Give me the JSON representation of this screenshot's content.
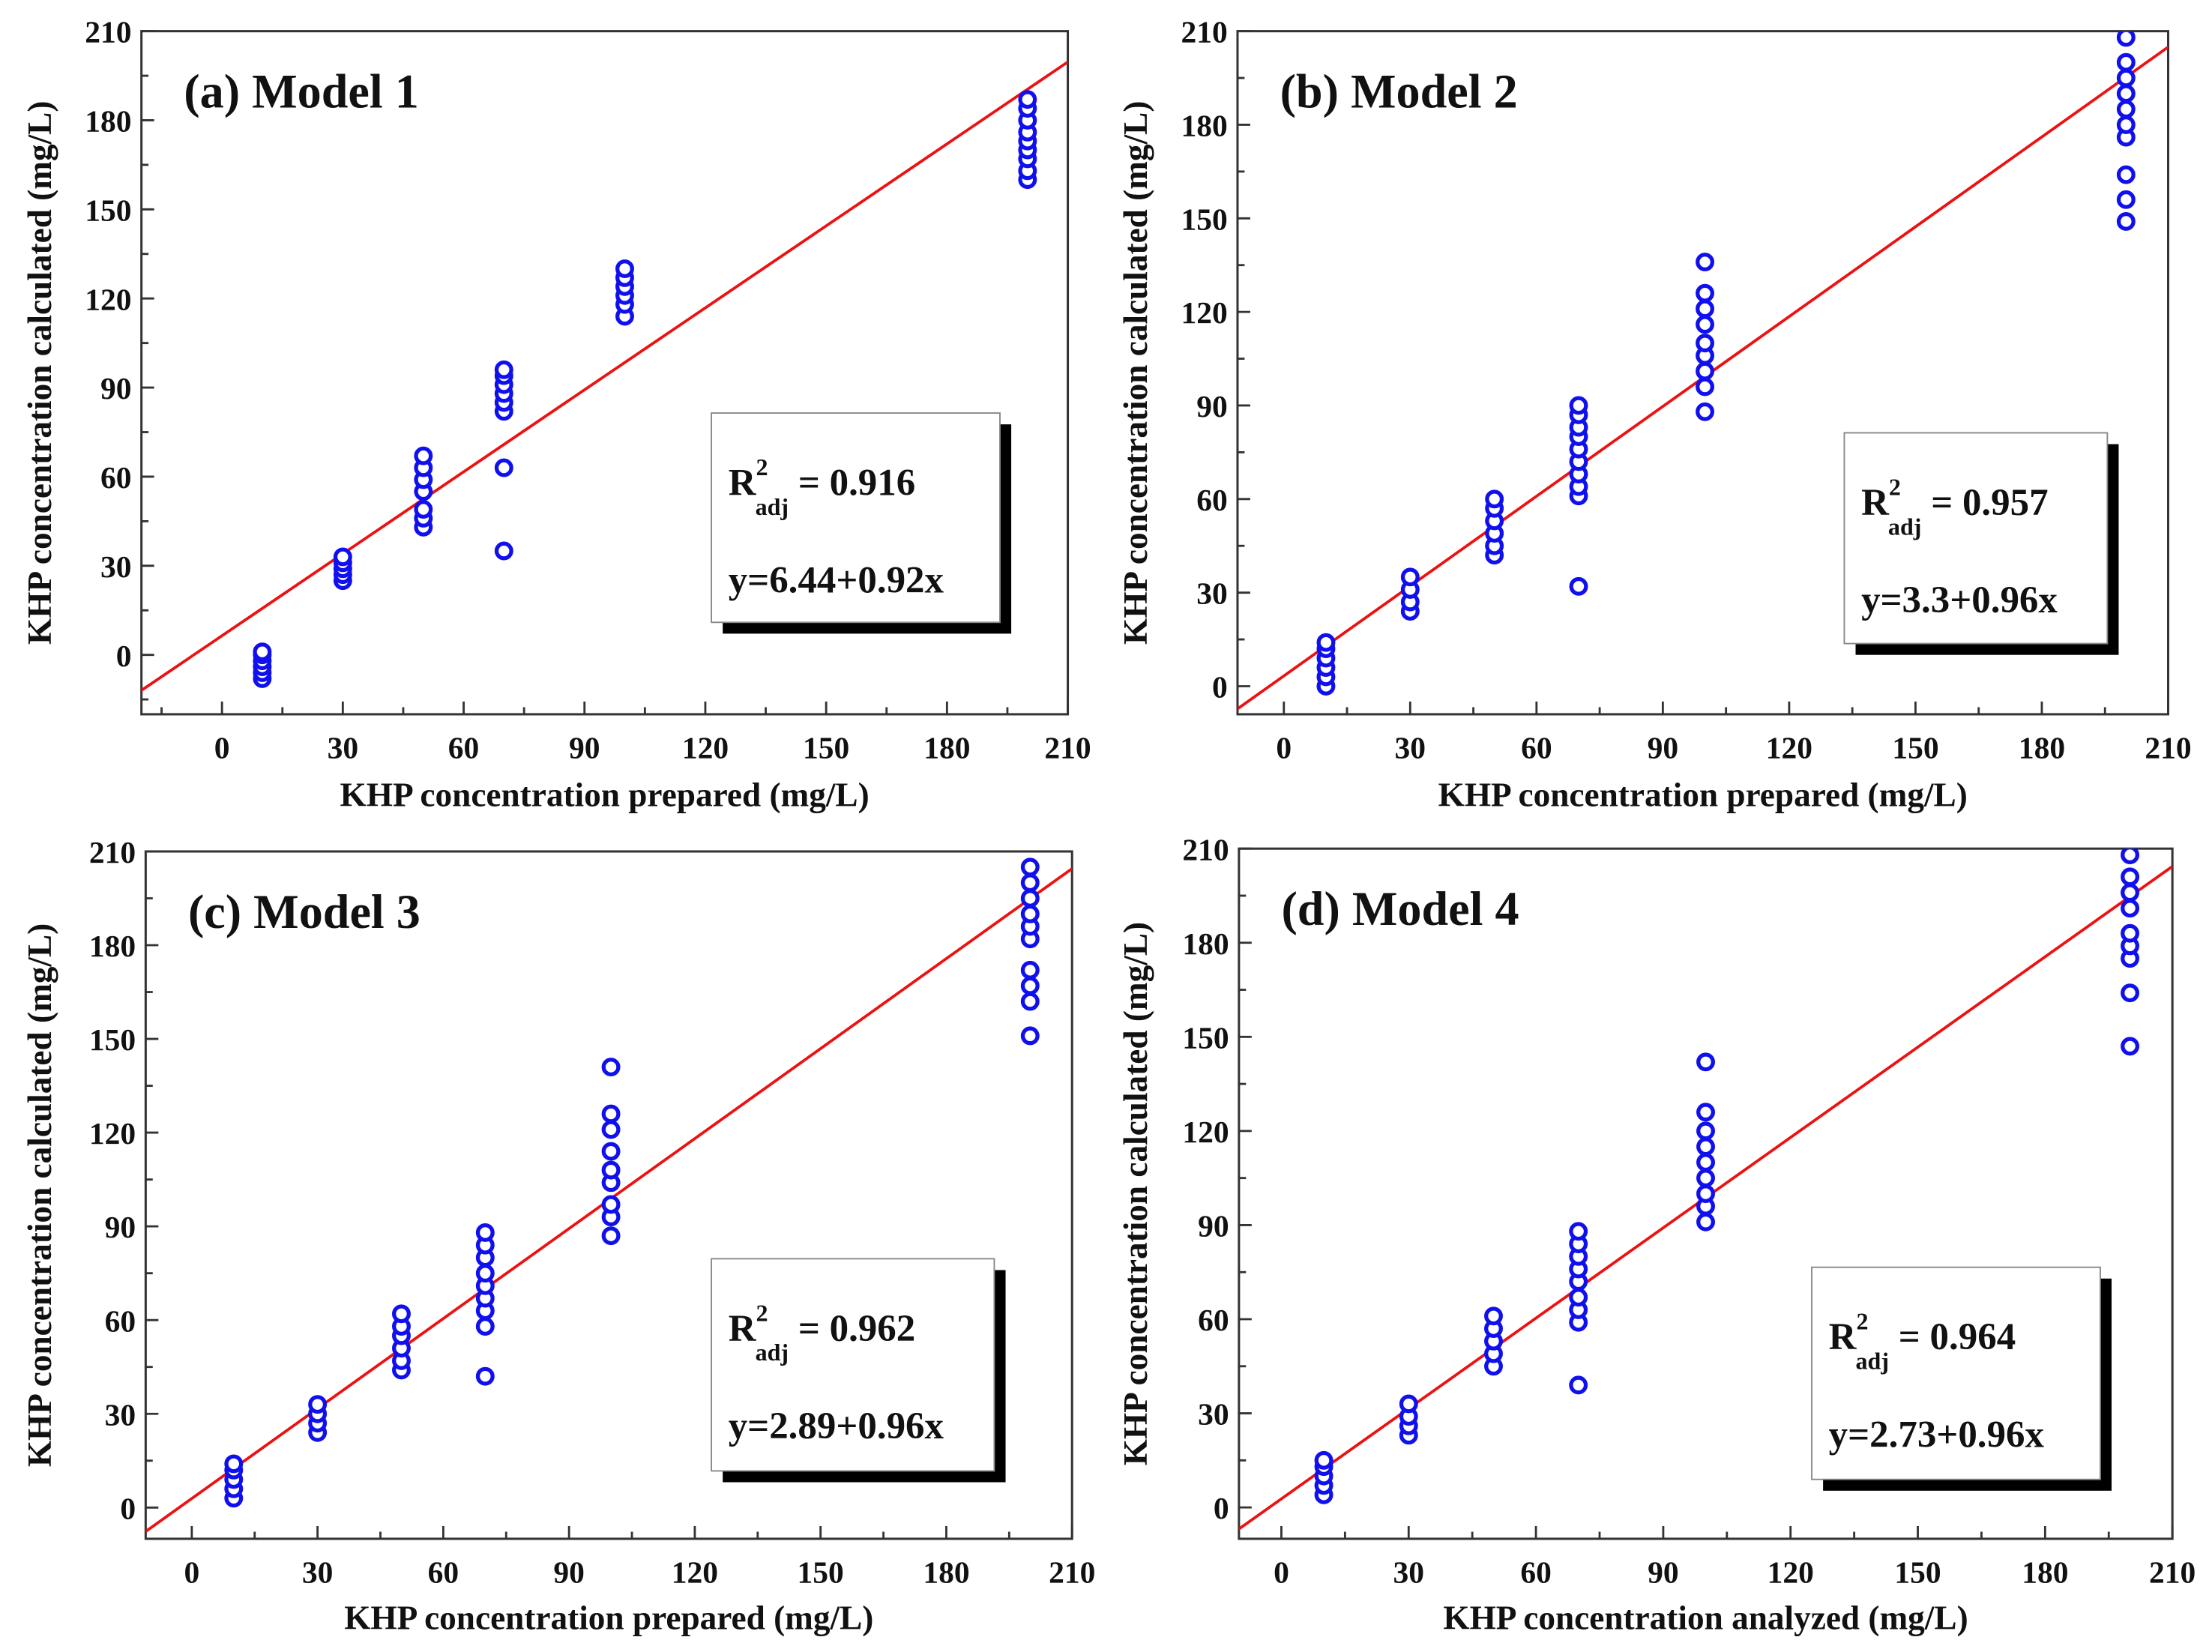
{
  "colors": {
    "marker": "#1010ee",
    "fit_line": "#ee1111",
    "axis": "#333333"
  },
  "chart_data": [
    {
      "type": "scatter",
      "title": "(a) Model 1",
      "xlabel": "KHP concentration prepared (mg/L)",
      "ylabel": "KHP concentration calculated (mg/L)",
      "xlim": [
        -20,
        210
      ],
      "ylim": [
        -20,
        210
      ],
      "xticks": [
        0,
        30,
        60,
        90,
        120,
        150,
        180,
        210
      ],
      "yticks": [
        0,
        30,
        60,
        90,
        120,
        150,
        180,
        210
      ],
      "r2_label": "R",
      "r2_sup": "2",
      "r2_sub": "adj",
      "r2_value": "= 0.916",
      "equation": "y=6.44+0.92x",
      "fit": {
        "intercept": 6.44,
        "slope": 0.92
      },
      "points": [
        {
          "x": 10,
          "y": [
            -8,
            -6,
            -4,
            -2,
            0,
            1
          ]
        },
        {
          "x": 30,
          "y": [
            25,
            27,
            29,
            31,
            33
          ]
        },
        {
          "x": 50,
          "y": [
            43,
            46,
            49,
            55,
            59,
            63,
            67
          ]
        },
        {
          "x": 70,
          "y": [
            35,
            63,
            82,
            85,
            88,
            91,
            94,
            96
          ]
        },
        {
          "x": 100,
          "y": [
            114,
            118,
            121,
            124,
            127,
            130
          ]
        },
        {
          "x": 200,
          "y": [
            160,
            163,
            167,
            170,
            173,
            176,
            180,
            184,
            187
          ]
        }
      ]
    },
    {
      "type": "scatter",
      "title": "(b) Model 2",
      "xlabel": "KHP concentration prepared (mg/L)",
      "ylabel": "KHP concentration calculated (mg/L)",
      "xlim": [
        -11,
        210
      ],
      "ylim": [
        -9,
        210
      ],
      "xticks": [
        0,
        30,
        60,
        90,
        120,
        150,
        180,
        210
      ],
      "yticks": [
        0,
        30,
        60,
        90,
        120,
        150,
        180,
        210
      ],
      "r2_label": "R",
      "r2_sup": "2",
      "r2_sub": "adj",
      "r2_value": "= 0.957",
      "equation": "y=3.3+0.96x",
      "fit": {
        "intercept": 3.3,
        "slope": 0.96
      },
      "points": [
        {
          "x": 10,
          "y": [
            0,
            3,
            6,
            9,
            12,
            14
          ]
        },
        {
          "x": 30,
          "y": [
            24,
            27,
            31,
            35
          ]
        },
        {
          "x": 50,
          "y": [
            42,
            45,
            49,
            53,
            57,
            60
          ]
        },
        {
          "x": 70,
          "y": [
            32,
            61,
            64,
            68,
            72,
            76,
            80,
            83,
            87,
            90
          ]
        },
        {
          "x": 100,
          "y": [
            88,
            96,
            101,
            106,
            110,
            116,
            121,
            126,
            136
          ]
        },
        {
          "x": 200,
          "y": [
            149,
            156,
            164,
            176,
            180,
            185,
            190,
            195,
            200,
            208
          ]
        }
      ]
    },
    {
      "type": "scatter",
      "title": "(c) Model 3",
      "xlabel": "KHP concentration prepared (mg/L)",
      "ylabel": "KHP concentration calculated (mg/L)",
      "xlim": [
        -11,
        210
      ],
      "ylim": [
        -10,
        210
      ],
      "xticks": [
        0,
        30,
        60,
        90,
        120,
        150,
        180,
        210
      ],
      "yticks": [
        0,
        30,
        60,
        90,
        120,
        150,
        180,
        210
      ],
      "r2_label": "R",
      "r2_sup": "2",
      "r2_sub": "adj",
      "r2_value": "= 0.962",
      "equation": "y=2.89+0.96x",
      "fit": {
        "intercept": 2.89,
        "slope": 0.96
      },
      "points": [
        {
          "x": 10,
          "y": [
            3,
            6,
            9,
            12,
            14
          ]
        },
        {
          "x": 30,
          "y": [
            24,
            27,
            30,
            33
          ]
        },
        {
          "x": 50,
          "y": [
            44,
            47,
            51,
            55,
            58,
            62
          ]
        },
        {
          "x": 70,
          "y": [
            42,
            58,
            63,
            67,
            71,
            75,
            80,
            84,
            88
          ]
        },
        {
          "x": 100,
          "y": [
            87,
            93,
            97,
            104,
            108,
            114,
            121,
            126,
            141
          ]
        },
        {
          "x": 200,
          "y": [
            151,
            162,
            167,
            172,
            182,
            186,
            190,
            195,
            200,
            205
          ]
        }
      ]
    },
    {
      "type": "scatter",
      "title": "(d) Model 4",
      "xlabel": "KHP concentration analyzed (mg/L)",
      "ylabel": "KHP concentration calculated (mg/L)",
      "xlim": [
        -10,
        210
      ],
      "ylim": [
        -10,
        210
      ],
      "xticks": [
        0,
        30,
        60,
        90,
        120,
        150,
        180,
        210
      ],
      "yticks": [
        0,
        30,
        60,
        90,
        120,
        150,
        180,
        210
      ],
      "r2_label": "R",
      "r2_sup": "2",
      "r2_sub": "adj",
      "r2_value": "= 0.964",
      "equation": "y=2.73+0.96x",
      "fit": {
        "intercept": 2.73,
        "slope": 0.96
      },
      "points": [
        {
          "x": 10,
          "y": [
            4,
            7,
            10,
            13,
            15
          ]
        },
        {
          "x": 30,
          "y": [
            23,
            26,
            29,
            33
          ]
        },
        {
          "x": 50,
          "y": [
            45,
            49,
            53,
            57,
            61
          ]
        },
        {
          "x": 70,
          "y": [
            39,
            59,
            63,
            67,
            72,
            76,
            80,
            84,
            88
          ]
        },
        {
          "x": 100,
          "y": [
            91,
            96,
            100,
            105,
            110,
            115,
            120,
            126,
            142
          ]
        },
        {
          "x": 200,
          "y": [
            147,
            164,
            175,
            179,
            183,
            191,
            196,
            201,
            208
          ]
        }
      ]
    }
  ]
}
